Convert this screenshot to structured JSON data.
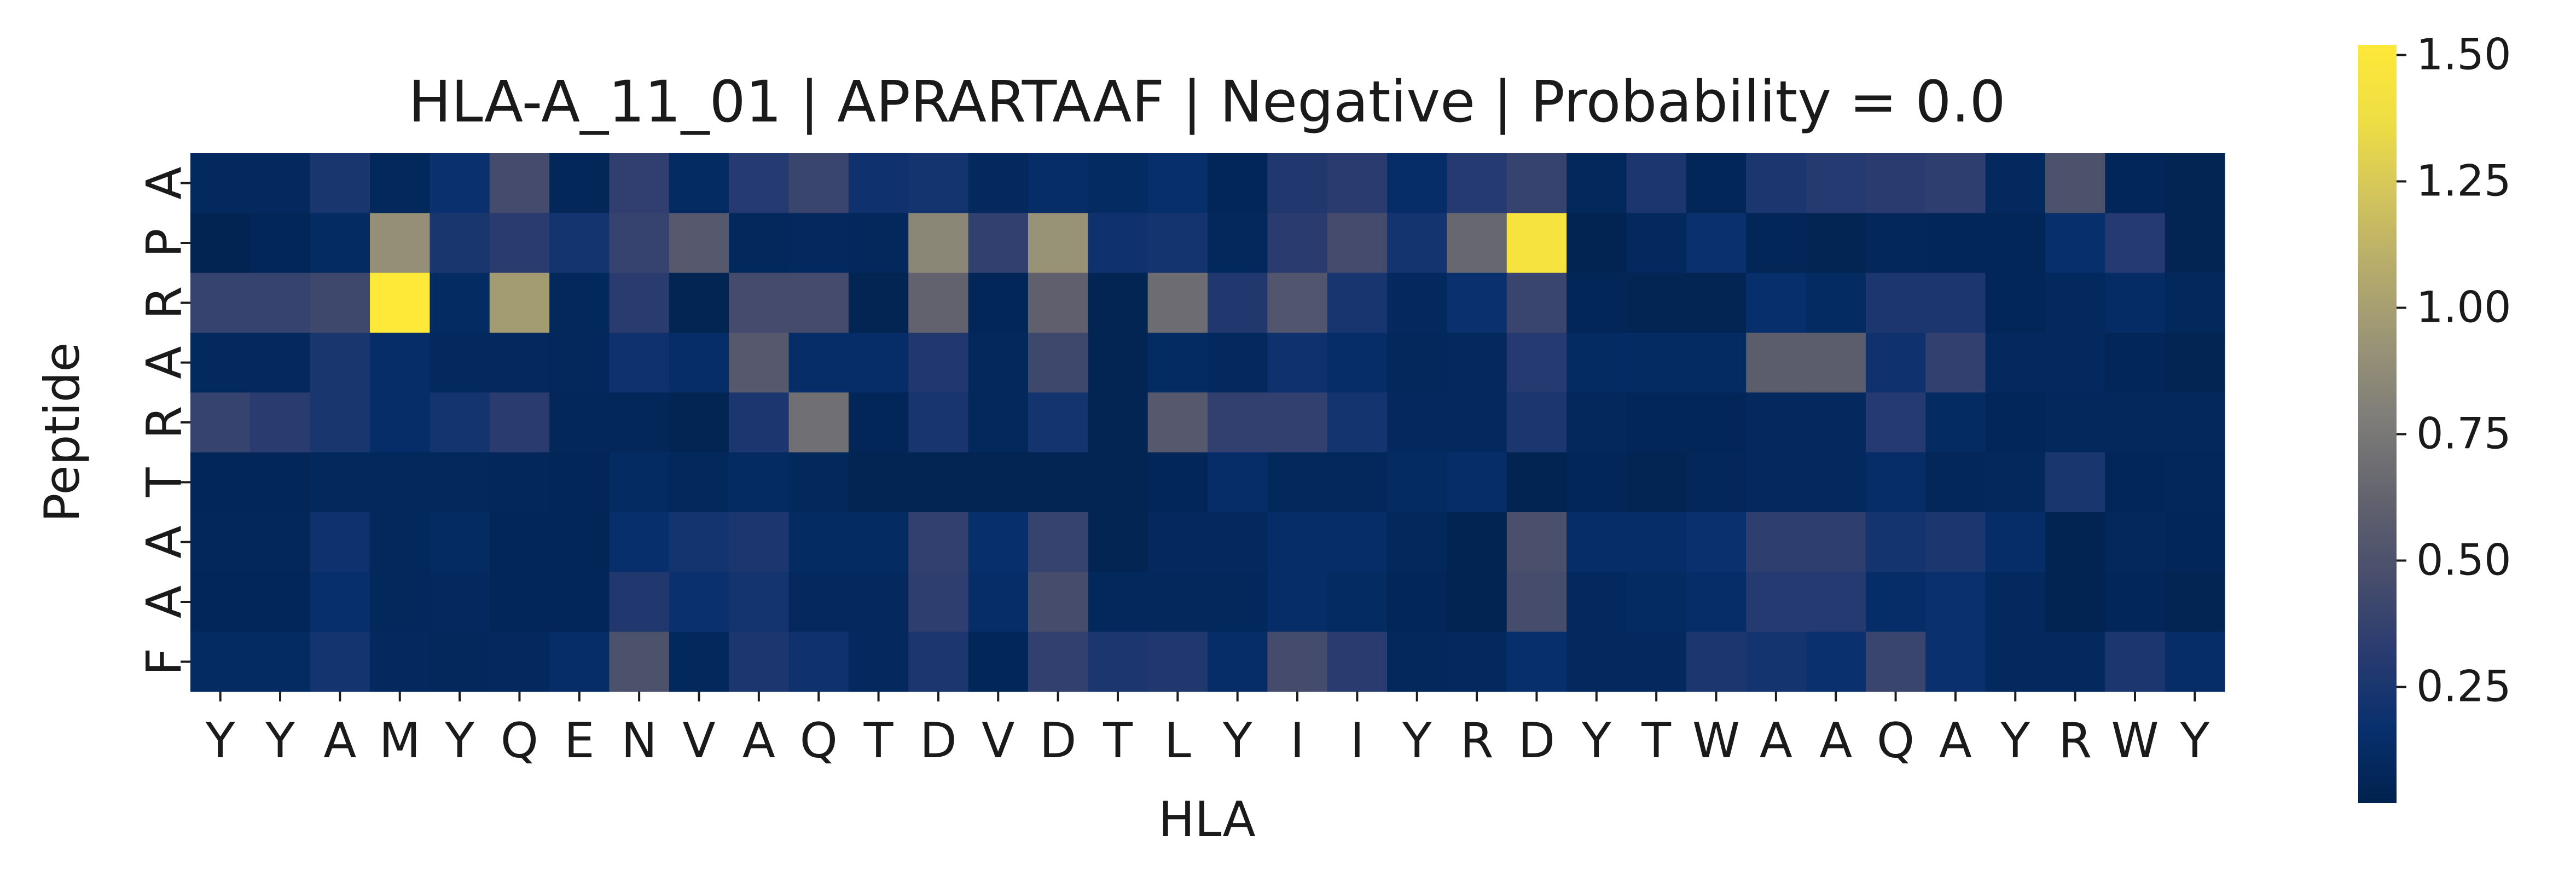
{
  "chart_data": {
    "type": "heatmap",
    "title": "HLA-A_11_01 | APRARTAAF | Negative | Probability = 0.0",
    "xlabel": "HLA",
    "ylabel": "Peptide",
    "x_categories": [
      "Y",
      "Y",
      "A",
      "M",
      "Y",
      "Q",
      "E",
      "N",
      "V",
      "A",
      "Q",
      "T",
      "D",
      "V",
      "D",
      "T",
      "L",
      "Y",
      "I",
      "I",
      "Y",
      "R",
      "D",
      "Y",
      "T",
      "W",
      "A",
      "A",
      "Q",
      "A",
      "Y",
      "R",
      "W",
      "Y"
    ],
    "y_categories": [
      "A",
      "P",
      "R",
      "A",
      "R",
      "T",
      "A",
      "A",
      "F"
    ],
    "colormap": "cividis",
    "colorbar": {
      "min": 0.02,
      "max": 1.52,
      "ticks": [
        0.25,
        0.5,
        0.75,
        1.0,
        1.25,
        1.5
      ],
      "tick_labels": [
        "0.25",
        "0.50",
        "0.75",
        "1.00",
        "1.25",
        "1.50"
      ]
    },
    "values": [
      [
        0.1,
        0.1,
        0.25,
        0.08,
        0.18,
        0.45,
        0.07,
        0.35,
        0.12,
        0.3,
        0.4,
        0.2,
        0.22,
        0.1,
        0.14,
        0.12,
        0.16,
        0.06,
        0.28,
        0.32,
        0.14,
        0.3,
        0.38,
        0.08,
        0.26,
        0.06,
        0.26,
        0.3,
        0.32,
        0.34,
        0.1,
        0.5,
        0.06,
        0.05
      ],
      [
        0.04,
        0.06,
        0.12,
        0.9,
        0.25,
        0.32,
        0.22,
        0.38,
        0.55,
        0.08,
        0.1,
        0.08,
        0.85,
        0.36,
        0.92,
        0.2,
        0.22,
        0.08,
        0.32,
        0.45,
        0.22,
        0.65,
        1.45,
        0.04,
        0.1,
        0.18,
        0.06,
        0.05,
        0.07,
        0.06,
        0.06,
        0.16,
        0.3,
        0.05
      ],
      [
        0.38,
        0.38,
        0.42,
        1.52,
        0.12,
        0.98,
        0.08,
        0.32,
        0.05,
        0.45,
        0.45,
        0.05,
        0.62,
        0.06,
        0.6,
        0.05,
        0.68,
        0.28,
        0.52,
        0.24,
        0.1,
        0.18,
        0.4,
        0.06,
        0.05,
        0.05,
        0.16,
        0.12,
        0.26,
        0.26,
        0.06,
        0.1,
        0.13,
        0.08
      ],
      [
        0.1,
        0.1,
        0.25,
        0.14,
        0.1,
        0.1,
        0.08,
        0.2,
        0.14,
        0.55,
        0.14,
        0.14,
        0.28,
        0.08,
        0.42,
        0.05,
        0.12,
        0.1,
        0.2,
        0.14,
        0.08,
        0.1,
        0.3,
        0.12,
        0.12,
        0.12,
        0.58,
        0.58,
        0.2,
        0.36,
        0.1,
        0.1,
        0.06,
        0.05
      ],
      [
        0.38,
        0.32,
        0.25,
        0.14,
        0.22,
        0.32,
        0.07,
        0.07,
        0.05,
        0.26,
        0.7,
        0.06,
        0.24,
        0.08,
        0.22,
        0.05,
        0.55,
        0.36,
        0.36,
        0.22,
        0.1,
        0.1,
        0.26,
        0.08,
        0.06,
        0.06,
        0.1,
        0.1,
        0.3,
        0.12,
        0.06,
        0.08,
        0.08,
        0.08
      ],
      [
        0.06,
        0.06,
        0.08,
        0.08,
        0.08,
        0.07,
        0.06,
        0.12,
        0.08,
        0.12,
        0.08,
        0.05,
        0.05,
        0.05,
        0.05,
        0.05,
        0.06,
        0.14,
        0.08,
        0.08,
        0.12,
        0.14,
        0.04,
        0.06,
        0.05,
        0.07,
        0.1,
        0.1,
        0.14,
        0.07,
        0.08,
        0.25,
        0.06,
        0.07
      ],
      [
        0.07,
        0.07,
        0.2,
        0.08,
        0.12,
        0.06,
        0.06,
        0.16,
        0.22,
        0.26,
        0.12,
        0.12,
        0.36,
        0.16,
        0.38,
        0.05,
        0.1,
        0.1,
        0.14,
        0.14,
        0.08,
        0.04,
        0.48,
        0.14,
        0.14,
        0.18,
        0.34,
        0.34,
        0.22,
        0.26,
        0.14,
        0.04,
        0.08,
        0.06
      ],
      [
        0.06,
        0.06,
        0.16,
        0.08,
        0.1,
        0.06,
        0.06,
        0.28,
        0.18,
        0.22,
        0.1,
        0.1,
        0.34,
        0.14,
        0.46,
        0.08,
        0.08,
        0.08,
        0.14,
        0.12,
        0.06,
        0.04,
        0.46,
        0.1,
        0.12,
        0.14,
        0.3,
        0.3,
        0.14,
        0.18,
        0.1,
        0.04,
        0.06,
        0.05
      ],
      [
        0.12,
        0.12,
        0.22,
        0.1,
        0.08,
        0.1,
        0.14,
        0.5,
        0.08,
        0.26,
        0.2,
        0.1,
        0.26,
        0.06,
        0.36,
        0.26,
        0.28,
        0.14,
        0.45,
        0.32,
        0.08,
        0.1,
        0.16,
        0.1,
        0.1,
        0.26,
        0.22,
        0.18,
        0.4,
        0.18,
        0.1,
        0.1,
        0.26,
        0.14
      ]
    ]
  }
}
